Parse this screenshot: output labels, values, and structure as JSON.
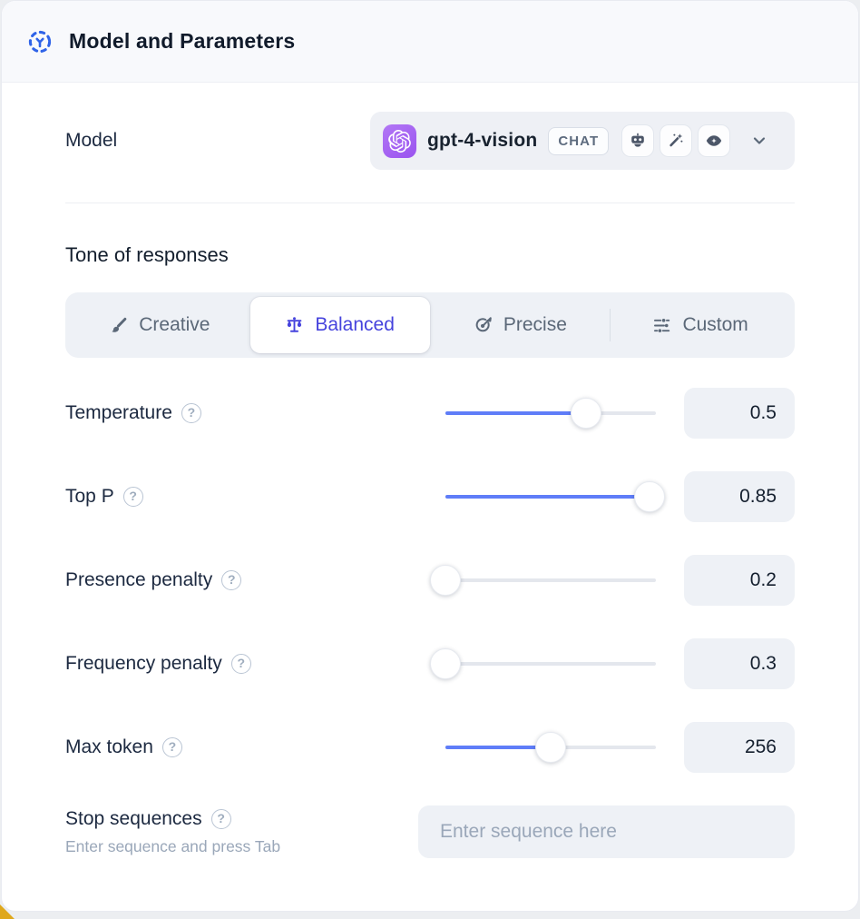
{
  "header": {
    "title": "Model and Parameters",
    "icon": "model-hub-icon"
  },
  "model": {
    "label": "Model",
    "selected": {
      "name": "gpt-4-vision",
      "provider_icon": "openai-logo-icon",
      "type_badge": "CHAT",
      "capability_icons": [
        "chatbot-icon",
        "magic-wand-icon",
        "vision-eye-icon"
      ]
    }
  },
  "tone": {
    "heading": "Tone of responses",
    "selected_index": 1,
    "options": [
      {
        "label": "Creative",
        "icon": "paintbrush-icon"
      },
      {
        "label": "Balanced",
        "icon": "balance-scale-icon"
      },
      {
        "label": "Precise",
        "icon": "target-icon"
      },
      {
        "label": "Custom",
        "icon": "sliders-icon"
      }
    ]
  },
  "parameters": [
    {
      "label": "Temperature",
      "value": "0.5",
      "slider_percent": 67
    },
    {
      "label": "Top P",
      "value": "0.85",
      "slider_percent": 97
    },
    {
      "label": "Presence penalty",
      "value": "0.2",
      "slider_percent": 0
    },
    {
      "label": "Frequency penalty",
      "value": "0.3",
      "slider_percent": 0
    },
    {
      "label": "Max token",
      "value": "256",
      "slider_percent": 50
    }
  ],
  "stop_sequences": {
    "label": "Stop sequences",
    "hint": "Enter sequence and press Tab",
    "placeholder": "Enter sequence here"
  },
  "colors": {
    "accent_blue": "#5f7df8",
    "selected_indigo": "#4643dd",
    "header_icon_blue": "#2f63e8",
    "provider_purple": "#9a53ef",
    "surface_gray": "#eef1f6",
    "text_dark": "#141f2e",
    "text_muted": "#5b6878",
    "text_hint": "#9aa7b9"
  }
}
